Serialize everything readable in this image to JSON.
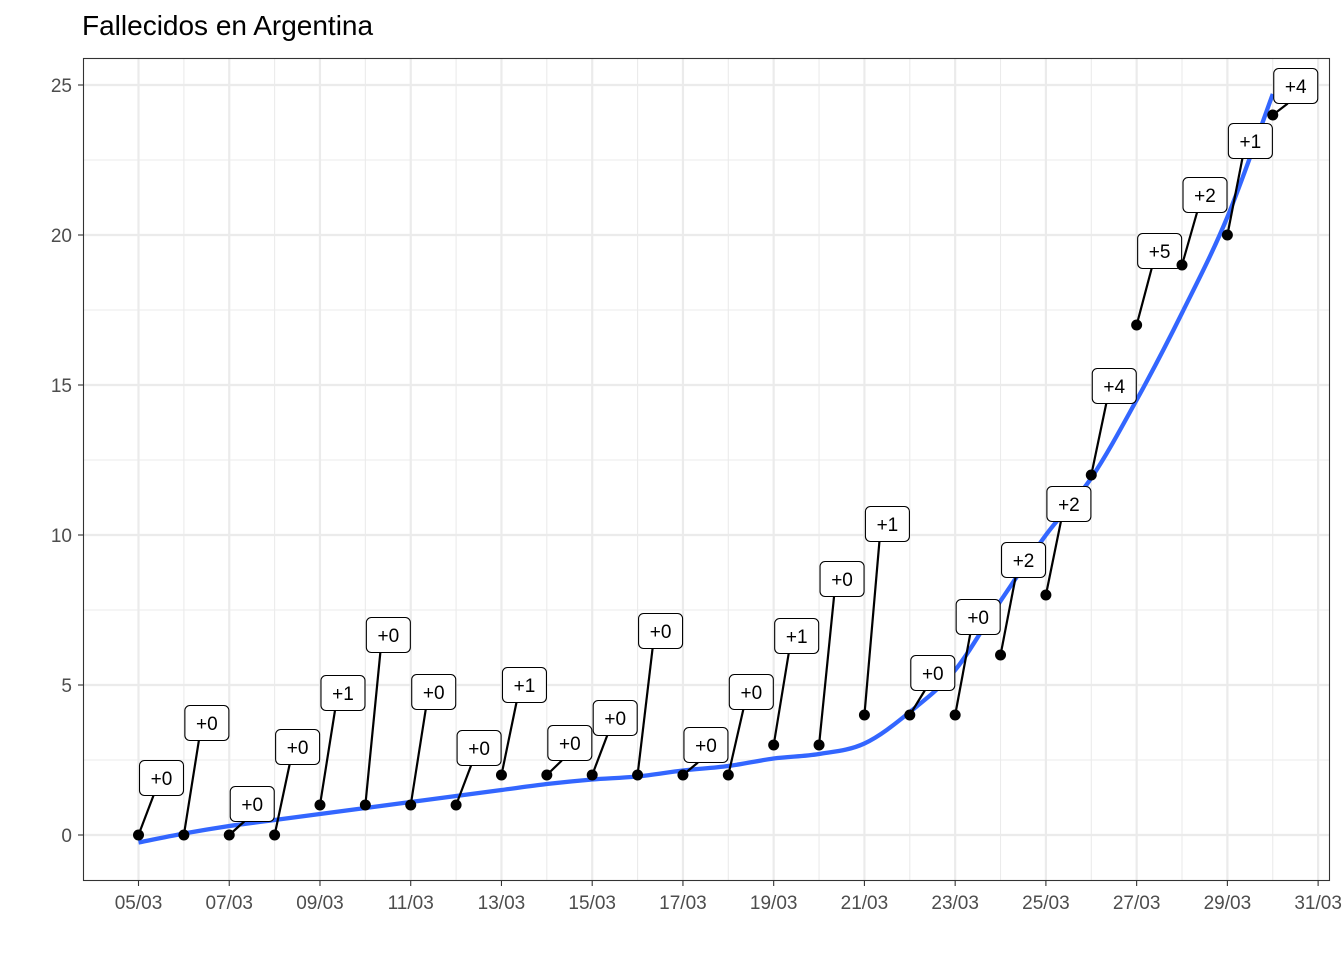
{
  "chart_data": {
    "type": "scatter",
    "title": "Fallecidos en Argentina",
    "xlabel": "",
    "ylabel": "",
    "x_tick_labels": [
      "05/03",
      "07/03",
      "09/03",
      "11/03",
      "13/03",
      "15/03",
      "17/03",
      "19/03",
      "21/03",
      "23/03",
      "25/03",
      "27/03",
      "29/03",
      "31/03"
    ],
    "y_tick_labels": [
      "0",
      "5",
      "10",
      "15",
      "20",
      "25"
    ],
    "ylim": [
      -1.5,
      25.9
    ],
    "grid": true,
    "points": [
      {
        "date": "05/03",
        "y": 0,
        "label": "+0"
      },
      {
        "date": "06/03",
        "y": 0,
        "label": "+0"
      },
      {
        "date": "07/03",
        "y": 0,
        "label": "+0"
      },
      {
        "date": "08/03",
        "y": 0,
        "label": "+0"
      },
      {
        "date": "09/03",
        "y": 1,
        "label": "+1"
      },
      {
        "date": "10/03",
        "y": 1,
        "label": "+0"
      },
      {
        "date": "11/03",
        "y": 1,
        "label": "+0"
      },
      {
        "date": "12/03",
        "y": 1,
        "label": "+0"
      },
      {
        "date": "13/03",
        "y": 2,
        "label": "+1"
      },
      {
        "date": "14/03",
        "y": 2,
        "label": "+0"
      },
      {
        "date": "15/03",
        "y": 2,
        "label": "+0"
      },
      {
        "date": "16/03",
        "y": 2,
        "label": "+0"
      },
      {
        "date": "17/03",
        "y": 2,
        "label": "+0"
      },
      {
        "date": "18/03",
        "y": 2,
        "label": "+0"
      },
      {
        "date": "19/03",
        "y": 3,
        "label": "+1"
      },
      {
        "date": "20/03",
        "y": 3,
        "label": "+0"
      },
      {
        "date": "21/03",
        "y": 4,
        "label": "+1"
      },
      {
        "date": "22/03",
        "y": 4,
        "label": "+0"
      },
      {
        "date": "23/03",
        "y": 4,
        "label": "+0"
      },
      {
        "date": "24/03",
        "y": 6,
        "label": "+2"
      },
      {
        "date": "25/03",
        "y": 8,
        "label": "+2"
      },
      {
        "date": "26/03",
        "y": 12,
        "label": "+4"
      },
      {
        "date": "27/03",
        "y": 17,
        "label": "+5"
      },
      {
        "date": "28/03",
        "y": 19,
        "label": "+2"
      },
      {
        "date": "29/03",
        "y": 20,
        "label": "+1"
      },
      {
        "date": "30/03",
        "y": 24,
        "label": "+4"
      }
    ],
    "smooth_line": {
      "color": "#3366ff",
      "x": [
        "05/03",
        "06/03",
        "07/03",
        "08/03",
        "09/03",
        "10/03",
        "11/03",
        "12/03",
        "13/03",
        "14/03",
        "15/03",
        "16/03",
        "17/03",
        "18/03",
        "19/03",
        "20/03",
        "21/03",
        "22/03",
        "23/03",
        "24/03",
        "25/03",
        "26/03",
        "27/03",
        "28/03",
        "29/03",
        "30/03"
      ],
      "y": [
        -0.25,
        0.05,
        0.3,
        0.5,
        0.7,
        0.9,
        1.1,
        1.3,
        1.5,
        1.7,
        1.85,
        1.95,
        2.15,
        2.3,
        2.55,
        2.7,
        3.05,
        4.1,
        5.5,
        7.8,
        10.0,
        11.9,
        14.5,
        17.4,
        20.6,
        24.7
      ]
    },
    "point_color": "#000000"
  }
}
